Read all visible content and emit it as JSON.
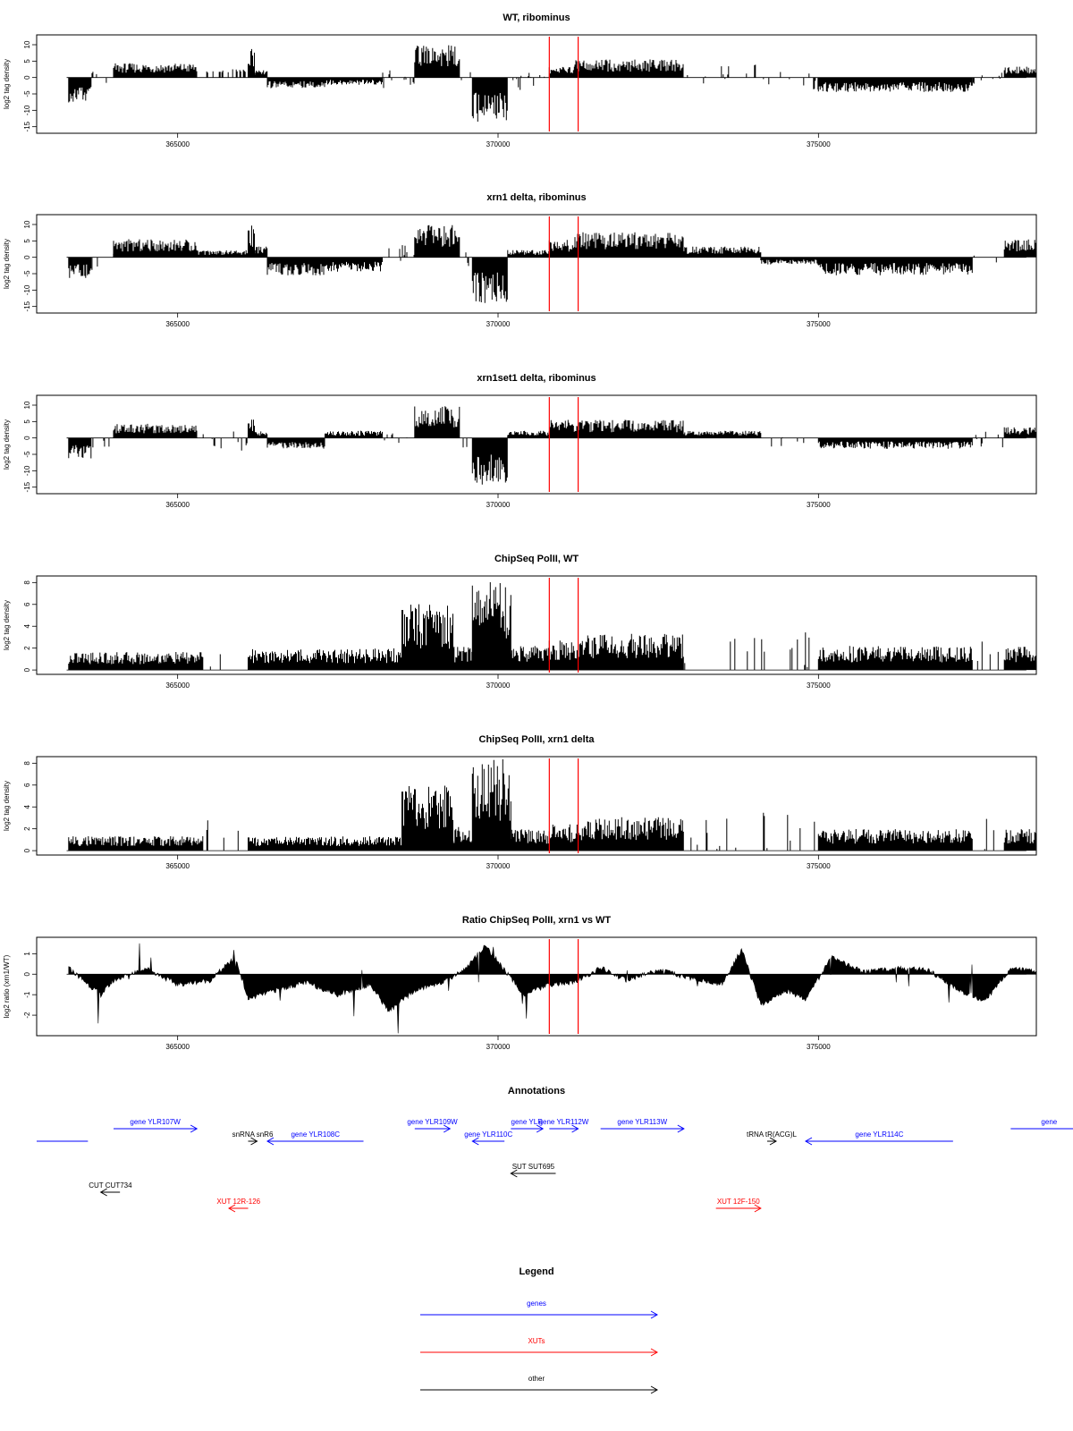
{
  "chart_data": [
    {
      "type": "bar",
      "title": "WT, ribominus",
      "ylabel": "log2 tag density",
      "ylim": [
        -17,
        13
      ],
      "yticks": [
        -15,
        -10,
        -5,
        0,
        5,
        10
      ],
      "xlim": [
        362800,
        378400
      ],
      "xticks": [
        365000,
        370000,
        375000
      ],
      "marker_lines": [
        370800,
        371250
      ],
      "segments": [
        {
          "from": 363300,
          "to": 363650,
          "value": -7
        },
        {
          "from": 363650,
          "to": 364000,
          "value": -1
        },
        {
          "from": 364000,
          "to": 365300,
          "value": 4
        },
        {
          "from": 365300,
          "to": 366100,
          "value": -0.5
        },
        {
          "from": 366100,
          "to": 366200,
          "value": 9
        },
        {
          "from": 366200,
          "to": 366400,
          "value": 2
        },
        {
          "from": 366400,
          "to": 367300,
          "value": -3
        },
        {
          "from": 367300,
          "to": 368200,
          "value": -2
        },
        {
          "from": 368200,
          "to": 368700,
          "value": -0.5
        },
        {
          "from": 368700,
          "to": 369400,
          "value": 9
        },
        {
          "from": 369400,
          "to": 369600,
          "value": -1
        },
        {
          "from": 369600,
          "to": 370150,
          "value": -13
        },
        {
          "from": 370150,
          "to": 370800,
          "value": -1
        },
        {
          "from": 370800,
          "to": 371200,
          "value": 3
        },
        {
          "from": 371200,
          "to": 372900,
          "value": 5
        },
        {
          "from": 372900,
          "to": 374100,
          "value": 1
        },
        {
          "from": 374100,
          "to": 375000,
          "value": -1
        },
        {
          "from": 375000,
          "to": 377400,
          "value": -4
        },
        {
          "from": 377400,
          "to": 377900,
          "value": -0.5
        },
        {
          "from": 377900,
          "to": 378400,
          "value": 3
        }
      ]
    },
    {
      "type": "bar",
      "title": "xrn1 delta, ribominus",
      "ylabel": "log2 tag density",
      "ylim": [
        -17,
        13
      ],
      "yticks": [
        -15,
        -10,
        -5,
        0,
        5,
        10
      ],
      "xlim": [
        362800,
        378400
      ],
      "xticks": [
        365000,
        370000,
        375000
      ],
      "marker_lines": [
        370800,
        371250
      ],
      "segments": [
        {
          "from": 363300,
          "to": 363650,
          "value": -6
        },
        {
          "from": 363650,
          "to": 364000,
          "value": -1
        },
        {
          "from": 364000,
          "to": 365300,
          "value": 5
        },
        {
          "from": 365300,
          "to": 366100,
          "value": 2
        },
        {
          "from": 366100,
          "to": 366200,
          "value": 9
        },
        {
          "from": 366200,
          "to": 366400,
          "value": 3
        },
        {
          "from": 366400,
          "to": 367300,
          "value": -5
        },
        {
          "from": 367300,
          "to": 368200,
          "value": -4
        },
        {
          "from": 368200,
          "to": 368700,
          "value": 1
        },
        {
          "from": 368700,
          "to": 369400,
          "value": 9
        },
        {
          "from": 369400,
          "to": 369600,
          "value": -1
        },
        {
          "from": 369600,
          "to": 370150,
          "value": -13
        },
        {
          "from": 370150,
          "to": 370800,
          "value": 2
        },
        {
          "from": 370800,
          "to": 371200,
          "value": 5
        },
        {
          "from": 371200,
          "to": 372900,
          "value": 7
        },
        {
          "from": 372900,
          "to": 374100,
          "value": 3
        },
        {
          "from": 374100,
          "to": 375000,
          "value": -2
        },
        {
          "from": 375000,
          "to": 377400,
          "value": -5
        },
        {
          "from": 377400,
          "to": 377900,
          "value": -0.5
        },
        {
          "from": 377900,
          "to": 378400,
          "value": 5
        }
      ]
    },
    {
      "type": "bar",
      "title": "xrn1set1 delta, ribominus",
      "ylabel": "log2 tag density",
      "ylim": [
        -17,
        13
      ],
      "yticks": [
        -15,
        -10,
        -5,
        0,
        5,
        10
      ],
      "xlim": [
        362800,
        378400
      ],
      "xticks": [
        365000,
        370000,
        375000
      ],
      "marker_lines": [
        370800,
        371250
      ],
      "segments": [
        {
          "from": 363300,
          "to": 363650,
          "value": -6
        },
        {
          "from": 363650,
          "to": 364000,
          "value": -1
        },
        {
          "from": 364000,
          "to": 365300,
          "value": 4
        },
        {
          "from": 365300,
          "to": 366100,
          "value": -1
        },
        {
          "from": 366100,
          "to": 366200,
          "value": 6
        },
        {
          "from": 366200,
          "to": 366400,
          "value": 2
        },
        {
          "from": 366400,
          "to": 367300,
          "value": -3
        },
        {
          "from": 367300,
          "to": 368200,
          "value": 2
        },
        {
          "from": 368200,
          "to": 368700,
          "value": -1
        },
        {
          "from": 368700,
          "to": 369400,
          "value": 9
        },
        {
          "from": 369400,
          "to": 369600,
          "value": -1
        },
        {
          "from": 369600,
          "to": 370150,
          "value": -13
        },
        {
          "from": 370150,
          "to": 370800,
          "value": 2
        },
        {
          "from": 370800,
          "to": 371200,
          "value": 5
        },
        {
          "from": 371200,
          "to": 372900,
          "value": 5
        },
        {
          "from": 372900,
          "to": 374100,
          "value": 2
        },
        {
          "from": 374100,
          "to": 375000,
          "value": -1
        },
        {
          "from": 375000,
          "to": 377400,
          "value": -3
        },
        {
          "from": 377400,
          "to": 377900,
          "value": -0.5
        },
        {
          "from": 377900,
          "to": 378400,
          "value": 3
        }
      ]
    },
    {
      "type": "bar",
      "title": "ChipSeq PolII, WT",
      "ylabel": "log2 tag density",
      "ylim": [
        -0.4,
        8.6
      ],
      "yticks": [
        0,
        2,
        4,
        6,
        8
      ],
      "xlim": [
        362800,
        378400
      ],
      "xticks": [
        365000,
        370000,
        375000
      ],
      "marker_lines": [
        370800,
        371250
      ],
      "segments": [
        {
          "from": 363300,
          "to": 365400,
          "value": 1.5
        },
        {
          "from": 365400,
          "to": 366100,
          "value": 0
        },
        {
          "from": 366100,
          "to": 368500,
          "value": 1.8
        },
        {
          "from": 368500,
          "to": 369300,
          "value": 5.5
        },
        {
          "from": 369300,
          "to": 369600,
          "value": 2
        },
        {
          "from": 369600,
          "to": 370200,
          "value": 7.5
        },
        {
          "from": 370200,
          "to": 370800,
          "value": 2
        },
        {
          "from": 370800,
          "to": 371400,
          "value": 2.5
        },
        {
          "from": 371400,
          "to": 372900,
          "value": 3
        },
        {
          "from": 372900,
          "to": 374100,
          "value": 0.3
        },
        {
          "from": 374100,
          "to": 375000,
          "value": 0.5
        },
        {
          "from": 375000,
          "to": 377400,
          "value": 2
        },
        {
          "from": 377400,
          "to": 377900,
          "value": 0
        },
        {
          "from": 377900,
          "to": 378400,
          "value": 2
        }
      ]
    },
    {
      "type": "bar",
      "title": "ChipSeq PolII, xrn1 delta",
      "ylabel": "log2 tag density",
      "ylim": [
        -0.4,
        8.6
      ],
      "yticks": [
        0,
        2,
        4,
        6,
        8
      ],
      "xlim": [
        362800,
        378400
      ],
      "xticks": [
        365000,
        370000,
        375000
      ],
      "marker_lines": [
        370800,
        371250
      ],
      "segments": [
        {
          "from": 363300,
          "to": 365400,
          "value": 1.2
        },
        {
          "from": 365400,
          "to": 366100,
          "value": 0
        },
        {
          "from": 366100,
          "to": 368500,
          "value": 1.2
        },
        {
          "from": 368500,
          "to": 369300,
          "value": 5.5
        },
        {
          "from": 369300,
          "to": 369600,
          "value": 2
        },
        {
          "from": 369600,
          "to": 370200,
          "value": 7.8
        },
        {
          "from": 370200,
          "to": 370800,
          "value": 1.8
        },
        {
          "from": 370800,
          "to": 371400,
          "value": 2.2
        },
        {
          "from": 371400,
          "to": 372900,
          "value": 2.8
        },
        {
          "from": 372900,
          "to": 374100,
          "value": 0.2
        },
        {
          "from": 374100,
          "to": 375000,
          "value": 0.5
        },
        {
          "from": 375000,
          "to": 377400,
          "value": 1.8
        },
        {
          "from": 377400,
          "to": 377900,
          "value": 0
        },
        {
          "from": 377900,
          "to": 378400,
          "value": 1.8
        }
      ]
    },
    {
      "type": "area",
      "title": "Ratio ChipSeq PolII, xrn1 vs WT",
      "ylabel": "log2 ratio (xrn1/WT)",
      "ylim": [
        -3,
        1.8
      ],
      "yticks": [
        -2,
        -1,
        0,
        1
      ],
      "xlim": [
        362800,
        378400
      ],
      "xticks": [
        365000,
        370000,
        375000
      ],
      "marker_lines": [
        370800,
        371250
      ],
      "x": [
        363300,
        363800,
        364000,
        364500,
        365000,
        365500,
        365900,
        366100,
        366500,
        367000,
        367500,
        368000,
        368300,
        368700,
        369200,
        369500,
        369800,
        370100,
        370400,
        370800,
        371200,
        371600,
        372000,
        372500,
        373000,
        373500,
        373800,
        374100,
        374500,
        374800,
        375200,
        375700,
        376200,
        376700,
        377200,
        377600,
        378000,
        378400
      ],
      "y": [
        0.3,
        -1.0,
        -0.3,
        0.3,
        -0.5,
        -0.3,
        0.8,
        -1.2,
        -0.8,
        -0.4,
        -1.0,
        -0.5,
        -1.8,
        -0.8,
        -0.3,
        0.3,
        1.4,
        0.2,
        -1.0,
        -0.5,
        -0.4,
        0.3,
        -0.3,
        0.2,
        -0.2,
        -0.5,
        1.2,
        -1.5,
        -0.8,
        -1.2,
        0.8,
        0.1,
        0.3,
        0.2,
        -0.8,
        -1.3,
        0.3,
        0.1
      ]
    }
  ],
  "annotations": {
    "title": "Annotations",
    "features": [
      {
        "label": "",
        "kind": "gene",
        "from": 362800,
        "to": 363600,
        "strand": "none",
        "row": 1
      },
      {
        "label": "gene YLR107W",
        "kind": "gene",
        "from": 364000,
        "to": 365300,
        "strand": "+",
        "row": 0
      },
      {
        "label": "snRNA snR6",
        "kind": "other",
        "from": 366100,
        "to": 366200,
        "strand": "+",
        "row": 1
      },
      {
        "label": "gene YLR108C",
        "kind": "gene",
        "from": 366400,
        "to": 367900,
        "strand": "-",
        "row": 1
      },
      {
        "label": "gene YLR109W",
        "kind": "gene",
        "from": 368700,
        "to": 369250,
        "strand": "+",
        "row": 0
      },
      {
        "label": "gene YLR110C",
        "kind": "gene",
        "from": 369600,
        "to": 370100,
        "strand": "-",
        "row": 1
      },
      {
        "label": "gene YLR",
        "kind": "gene",
        "from": 370200,
        "to": 370700,
        "strand": "+",
        "row": 0
      },
      {
        "label": "gene YLR112W",
        "kind": "gene",
        "from": 370800,
        "to": 371250,
        "strand": "+",
        "row": 0
      },
      {
        "label": "gene YLR113W",
        "kind": "gene",
        "from": 371600,
        "to": 372900,
        "strand": "+",
        "row": 0
      },
      {
        "label": "tRNA tR(ACG)L",
        "kind": "other",
        "from": 374200,
        "to": 374280,
        "strand": "+",
        "row": 1
      },
      {
        "label": "gene YLR114C",
        "kind": "gene",
        "from": 374800,
        "to": 377100,
        "strand": "-",
        "row": 1
      },
      {
        "label": "gene",
        "kind": "gene",
        "from": 378000,
        "to": 379200,
        "strand": "+",
        "row": 0
      },
      {
        "label": "SUT SUT695",
        "kind": "other",
        "from": 370200,
        "to": 370900,
        "strand": "-",
        "row": 2
      },
      {
        "label": "CUT CUT734",
        "kind": "other",
        "from": 363800,
        "to": 364100,
        "strand": "-",
        "row": 3
      },
      {
        "label": "XUT 12R-126",
        "kind": "xut",
        "from": 365800,
        "to": 366100,
        "strand": "-",
        "row": 4
      },
      {
        "label": "XUT 12F-150",
        "kind": "xut",
        "from": 373400,
        "to": 374100,
        "strand": "+",
        "row": 4
      }
    ]
  },
  "legend": {
    "title": "Legend",
    "items": [
      {
        "label": "genes",
        "color": "#0000ff"
      },
      {
        "label": "XUTs",
        "color": "#ff0000"
      },
      {
        "label": "other",
        "color": "#000000"
      }
    ]
  },
  "colors": {
    "bars": "#000000",
    "marker": "#ff0000",
    "gene": "#0000ff",
    "xut": "#ff0000",
    "other": "#000000"
  }
}
